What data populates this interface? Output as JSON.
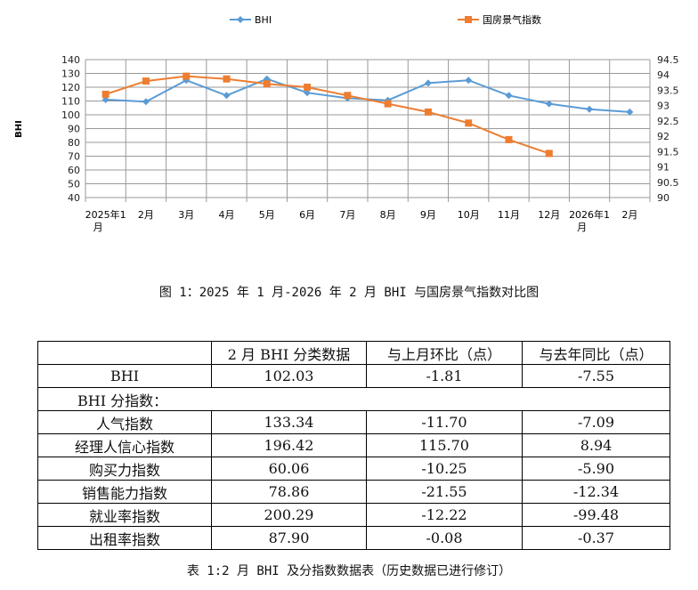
{
  "chart_data": {
    "type": "line",
    "categories": [
      "2025年1月",
      "2月",
      "3月",
      "4月",
      "5月",
      "6月",
      "7月",
      "8月",
      "9月",
      "10月",
      "11月",
      "12月",
      "2026年1月",
      "2月"
    ],
    "series": [
      {
        "name": "BHI",
        "axis": "left",
        "color": "#5B9BD5",
        "marker": "diamond",
        "values": [
          111,
          109.5,
          125,
          114,
          126,
          116,
          112,
          110.5,
          123,
          125,
          114,
          108,
          104,
          102.03
        ]
      },
      {
        "name": "国房景气指数",
        "axis": "right",
        "color": "#ED7D31",
        "marker": "square",
        "values": [
          93.37,
          93.8,
          93.96,
          93.87,
          93.71,
          93.6,
          93.33,
          93.06,
          92.79,
          92.43,
          91.89,
          91.44,
          null,
          null
        ]
      }
    ],
    "ylabel": "BHI",
    "ylim": [
      40,
      140
    ],
    "yticks": [
      40,
      50,
      60,
      70,
      80,
      90,
      100,
      110,
      120,
      130,
      140
    ],
    "y2lim": [
      90,
      94.5
    ],
    "y2ticks": [
      "90",
      "90.5",
      "91",
      "91.5",
      "92",
      "92.5",
      "93",
      "93.5",
      "94",
      "94.5"
    ],
    "grid": true,
    "legend": "top"
  },
  "figure_caption": "图 1：2025 年 1 月-2026 年 2 月 BHI 与国房景气指数对比图",
  "table": {
    "header": [
      "",
      "2 月 BHI 分类数据",
      "与上月环比（点）",
      "与去年同比（点）"
    ],
    "bhi": [
      "BHI",
      "102.03",
      "-1.81",
      "-7.55"
    ],
    "section": "BHI 分指数：",
    "rows": [
      [
        "人气指数",
        "133.34",
        "-11.70",
        "-7.09"
      ],
      [
        "经理人信心指数",
        "196.42",
        "115.70",
        "8.94"
      ],
      [
        "购买力指数",
        "60.06",
        "-10.25",
        "-5.90"
      ],
      [
        "销售能力指数",
        "78.86",
        "-21.55",
        "-12.34"
      ],
      [
        "就业率指数",
        "200.29",
        "-12.22",
        "-99.48"
      ],
      [
        "出租率指数",
        "87.90",
        "-0.08",
        "-0.37"
      ]
    ]
  },
  "table_caption": "表 1:2 月 BHI 及分指数数据表（历史数据已进行修订）"
}
